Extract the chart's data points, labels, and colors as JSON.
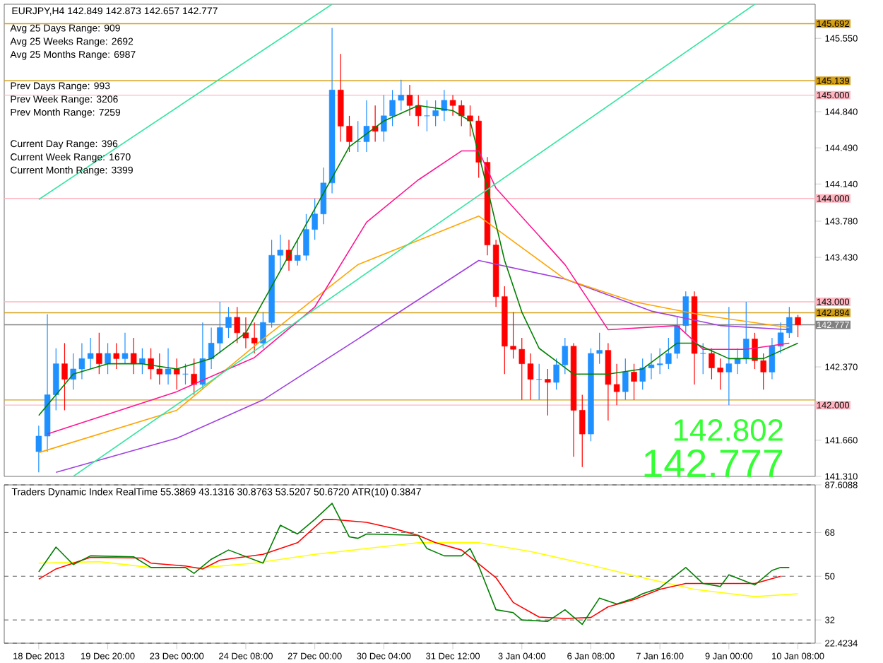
{
  "chart_data": [
    {
      "type": "candlestick",
      "title": "EURJPY,H4 142.849 142.873 142.657 142.777",
      "categories": [
        null,
        null,
        null,
        null,
        null,
        null,
        null,
        null,
        null,
        null,
        null,
        null,
        null,
        null,
        null,
        null,
        null,
        null,
        null,
        null,
        null,
        null,
        null,
        null,
        null,
        null,
        null,
        null,
        null,
        null,
        null,
        null,
        null,
        null,
        null,
        null,
        null,
        null,
        null,
        null,
        null,
        null,
        null,
        null,
        null,
        null,
        null,
        null,
        null,
        null,
        null,
        null,
        null,
        null,
        null,
        null,
        null,
        null,
        null,
        null,
        null,
        null,
        null,
        null,
        null,
        null,
        null,
        null,
        null,
        null,
        null,
        null,
        null,
        null,
        null,
        null,
        null,
        null,
        null,
        null,
        null,
        null,
        null,
        null,
        null,
        null,
        null,
        null,
        null
      ],
      "ohlc": [
        [
          141.55,
          141.8,
          141.35,
          141.7
        ],
        [
          141.7,
          142.88,
          141.55,
          142.1
        ],
        [
          142.1,
          142.55,
          141.95,
          142.4
        ],
        [
          142.4,
          142.6,
          141.95,
          142.25
        ],
        [
          142.25,
          142.5,
          142.15,
          142.35
        ],
        [
          142.35,
          142.6,
          142.25,
          142.45
        ],
        [
          142.45,
          142.65,
          142.35,
          142.5
        ],
        [
          142.5,
          142.7,
          142.3,
          142.4
        ],
        [
          142.4,
          142.6,
          142.3,
          142.5
        ],
        [
          142.5,
          142.6,
          142.35,
          142.45
        ],
        [
          142.45,
          142.7,
          142.4,
          142.5
        ],
        [
          142.5,
          142.65,
          142.3,
          142.4
        ],
        [
          142.4,
          142.55,
          142.3,
          142.45
        ],
        [
          142.45,
          142.55,
          142.25,
          142.35
        ],
        [
          142.35,
          142.5,
          142.2,
          142.3
        ],
        [
          142.3,
          142.55,
          142.2,
          142.35
        ],
        [
          142.35,
          142.45,
          142.15,
          142.3
        ],
        [
          142.3,
          142.4,
          142.2,
          142.3
        ],
        [
          142.3,
          142.45,
          142.1,
          142.2
        ],
        [
          142.2,
          142.8,
          142.15,
          142.45
        ],
        [
          142.45,
          142.75,
          142.35,
          142.6
        ],
        [
          142.6,
          143.0,
          142.5,
          142.75
        ],
        [
          142.75,
          142.95,
          142.65,
          142.85
        ],
        [
          142.85,
          142.95,
          142.6,
          142.7
        ],
        [
          142.7,
          142.85,
          142.55,
          142.65
        ],
        [
          142.65,
          142.8,
          142.5,
          142.6
        ],
        [
          142.6,
          142.9,
          142.55,
          142.8
        ],
        [
          142.8,
          143.6,
          142.75,
          143.45
        ],
        [
          143.45,
          143.65,
          143.3,
          143.5
        ],
        [
          143.5,
          143.6,
          143.3,
          143.4
        ],
        [
          143.4,
          143.6,
          143.35,
          143.45
        ],
        [
          143.45,
          143.85,
          143.4,
          143.7
        ],
        [
          143.7,
          144.0,
          143.6,
          143.85
        ],
        [
          143.85,
          144.3,
          143.75,
          144.15
        ],
        [
          144.15,
          145.65,
          144.05,
          145.05
        ],
        [
          145.05,
          145.4,
          144.55,
          144.7
        ],
        [
          144.7,
          144.8,
          144.45,
          144.55
        ],
        [
          144.55,
          144.75,
          144.45,
          144.55
        ],
        [
          144.55,
          144.95,
          144.45,
          144.7
        ],
        [
          144.7,
          144.9,
          144.55,
          144.65
        ],
        [
          144.65,
          145.0,
          144.55,
          144.8
        ],
        [
          144.8,
          145.05,
          144.7,
          144.95
        ],
        [
          144.95,
          145.15,
          144.85,
          145.0
        ],
        [
          145.0,
          145.1,
          144.8,
          144.9
        ],
        [
          144.9,
          145.0,
          144.7,
          144.8
        ],
        [
          144.8,
          144.95,
          144.65,
          144.8
        ],
        [
          144.8,
          144.95,
          144.7,
          144.85
        ],
        [
          144.85,
          145.05,
          144.75,
          144.95
        ],
        [
          144.95,
          145.0,
          144.8,
          144.9
        ],
        [
          144.9,
          144.95,
          144.7,
          144.8
        ],
        [
          144.8,
          144.9,
          144.6,
          144.75
        ],
        [
          144.75,
          144.8,
          144.2,
          144.35
        ],
        [
          144.35,
          144.4,
          143.45,
          143.55
        ],
        [
          143.55,
          143.6,
          142.95,
          143.05
        ],
        [
          143.05,
          143.15,
          142.3,
          142.57
        ],
        [
          142.57,
          142.9,
          142.45,
          142.54
        ],
        [
          142.54,
          142.65,
          142.05,
          142.4
        ],
        [
          142.4,
          142.5,
          142.05,
          142.25
        ],
        [
          142.25,
          142.4,
          142.05,
          142.25
        ],
        [
          142.25,
          142.35,
          141.9,
          142.22
        ],
        [
          142.22,
          142.45,
          142.15,
          142.39
        ],
        [
          142.39,
          142.65,
          142.3,
          142.57
        ],
        [
          142.57,
          142.6,
          141.5,
          141.95
        ],
        [
          141.95,
          142.1,
          141.4,
          141.72
        ],
        [
          141.72,
          142.55,
          141.65,
          142.5
        ],
        [
          142.5,
          142.7,
          142.4,
          142.53
        ],
        [
          142.53,
          142.6,
          141.85,
          142.2
        ],
        [
          142.2,
          142.4,
          142.0,
          142.13
        ],
        [
          142.13,
          142.45,
          142.05,
          142.32
        ],
        [
          142.32,
          142.4,
          142.05,
          142.23
        ],
        [
          142.23,
          142.45,
          142.15,
          142.36
        ],
        [
          142.36,
          142.5,
          142.25,
          142.39
        ],
        [
          142.39,
          142.55,
          142.3,
          142.4
        ],
        [
          142.4,
          142.65,
          142.35,
          142.5
        ],
        [
          142.5,
          142.85,
          142.45,
          142.77
        ],
        [
          142.77,
          143.1,
          142.7,
          143.05
        ],
        [
          143.05,
          143.1,
          142.2,
          142.5
        ],
        [
          142.5,
          142.6,
          142.3,
          142.5
        ],
        [
          142.5,
          142.55,
          142.25,
          142.36
        ],
        [
          142.36,
          142.45,
          142.15,
          142.32
        ],
        [
          142.32,
          142.95,
          142.0,
          142.4
        ],
        [
          142.4,
          142.55,
          142.3,
          142.45
        ],
        [
          142.45,
          143.0,
          142.4,
          142.64
        ],
        [
          142.64,
          142.7,
          142.35,
          142.43
        ],
        [
          142.43,
          142.5,
          142.15,
          142.32
        ],
        [
          142.32,
          142.65,
          142.25,
          142.57
        ],
        [
          142.57,
          142.8,
          142.5,
          142.7
        ],
        [
          142.7,
          142.95,
          142.65,
          142.849
        ],
        [
          142.849,
          142.873,
          142.657,
          142.777
        ]
      ],
      "colors": [
        "#1e90ff",
        "#1e90ff",
        "#1e90ff",
        "#ff0000",
        "#1e90ff",
        "#1e90ff",
        "#1e90ff",
        "#ff0000",
        "#1e90ff",
        "#ff0000",
        "#1e90ff",
        "#ff0000",
        "#1e90ff",
        "#ff0000",
        "#ff0000",
        "#1e90ff",
        "#ff0000",
        "#1e90ff",
        "#ff0000",
        "#1e90ff",
        "#1e90ff",
        "#1e90ff",
        "#1e90ff",
        "#ff0000",
        "#ff0000",
        "#ff0000",
        "#1e90ff",
        "#1e90ff",
        "#1e90ff",
        "#ff0000",
        "#1e90ff",
        "#1e90ff",
        "#1e90ff",
        "#1e90ff",
        "#1e90ff",
        "#ff0000",
        "#ff0000",
        "#1e90ff",
        "#1e90ff",
        "#ff0000",
        "#1e90ff",
        "#1e90ff",
        "#1e90ff",
        "#ff0000",
        "#ff0000",
        "#1e90ff",
        "#1e90ff",
        "#1e90ff",
        "#ff0000",
        "#ff0000",
        "#ff0000",
        "#ff0000",
        "#ff0000",
        "#ff0000",
        "#ff0000",
        "#ff0000",
        "#ff0000",
        "#ff0000",
        "#1e90ff",
        "#ff0000",
        "#1e90ff",
        "#1e90ff",
        "#ff0000",
        "#ff0000",
        "#1e90ff",
        "#1e90ff",
        "#ff0000",
        "#ff0000",
        "#1e90ff",
        "#ff0000",
        "#1e90ff",
        "#1e90ff",
        "#1e90ff",
        "#1e90ff",
        "#1e90ff",
        "#1e90ff",
        "#ff0000",
        "#1e90ff",
        "#ff0000",
        "#ff0000",
        "#1e90ff",
        "#1e90ff",
        "#1e90ff",
        "#ff0000",
        "#ff0000",
        "#1e90ff",
        "#1e90ff",
        "#1e90ff",
        "#ff0000"
      ],
      "series": [
        {
          "type": "line",
          "color": "#a040e0",
          "values": [
            null,
            null,
            141.35,
            null,
            null,
            null,
            null,
            null,
            null,
            null,
            null,
            null,
            null,
            null,
            null,
            null,
            141.68,
            null,
            null,
            null,
            null,
            null,
            null,
            null,
            null,
            null,
            142.05,
            null,
            null,
            null,
            null,
            null,
            null,
            null,
            null,
            null,
            null,
            142.64,
            null,
            null,
            null,
            null,
            null,
            null,
            null,
            null,
            null,
            null,
            null,
            null,
            null,
            143.4,
            null,
            null,
            null,
            null,
            null,
            null,
            null,
            null,
            null,
            143.22,
            null,
            null,
            null,
            null,
            null,
            null,
            null,
            null,
            null,
            142.91,
            null,
            null,
            null,
            null,
            null,
            null,
            null,
            142.77,
            null,
            null,
            null,
            null,
            null,
            null,
            null,
            142.73,
            null
          ]
        },
        {
          "type": "line",
          "color": "#ffa500",
          "values": [
            141.54,
            null,
            null,
            null,
            null,
            null,
            null,
            null,
            null,
            null,
            null,
            null,
            null,
            null,
            null,
            null,
            141.95,
            null,
            null,
            null,
            null,
            null,
            null,
            null,
            null,
            null,
            142.64,
            null,
            null,
            null,
            null,
            null,
            null,
            null,
            null,
            null,
            null,
            143.36,
            null,
            null,
            null,
            null,
            null,
            null,
            null,
            null,
            null,
            null,
            null,
            null,
            null,
            143.83,
            null,
            null,
            null,
            null,
            null,
            null,
            null,
            null,
            null,
            143.22,
            null,
            null,
            null,
            null,
            null,
            null,
            null,
            143.0,
            null,
            null,
            null,
            null,
            null,
            null,
            null,
            142.87,
            null,
            null,
            null,
            null,
            null,
            null,
            null,
            null,
            null,
            142.75,
            null
          ]
        },
        {
          "type": "line",
          "color": "#ff1493",
          "values": [
            null,
            141.72,
            null,
            null,
            null,
            null,
            null,
            null,
            null,
            null,
            null,
            null,
            null,
            null,
            null,
            null,
            142.13,
            null,
            null,
            null,
            null,
            null,
            null,
            null,
            null,
            142.46,
            null,
            null,
            null,
            null,
            null,
            null,
            142.95,
            null,
            null,
            null,
            null,
            null,
            143.77,
            null,
            null,
            null,
            null,
            null,
            144.18,
            null,
            null,
            null,
            null,
            144.46,
            null,
            144.46,
            null,
            144.1,
            null,
            null,
            null,
            null,
            null,
            null,
            null,
            143.36,
            null,
            null,
            null,
            null,
            142.73,
            null,
            null,
            null,
            null,
            null,
            null,
            null,
            142.77,
            null,
            null,
            142.54,
            null,
            null,
            null,
            null,
            142.54,
            null,
            null,
            null,
            null,
            142.6,
            null
          ]
        },
        {
          "type": "line",
          "color": "#008000",
          "values": [
            141.9,
            null,
            null,
            null,
            142.3,
            null,
            null,
            null,
            142.4,
            null,
            null,
            null,
            142.4,
            null,
            null,
            null,
            142.35,
            null,
            null,
            null,
            142.45,
            null,
            null,
            null,
            142.7,
            null,
            null,
            null,
            143.3,
            null,
            null,
            null,
            143.9,
            null,
            null,
            null,
            144.5,
            null,
            null,
            null,
            144.75,
            null,
            null,
            null,
            144.9,
            null,
            null,
            null,
            144.85,
            null,
            144.75,
            null,
            144.1,
            null,
            143.4,
            null,
            142.9,
            null,
            142.55,
            null,
            null,
            null,
            142.3,
            null,
            null,
            null,
            142.3,
            null,
            null,
            null,
            142.35,
            null,
            null,
            null,
            142.6,
            null,
            142.6,
            null,
            null,
            null,
            142.45,
            null,
            null,
            null,
            142.45,
            null,
            null,
            null,
            142.6
          ]
        },
        {
          "type": "line",
          "color": "#33e6a0",
          "values": [
            null,
            null,
            null,
            null,
            141.31,
            null,
            null,
            null,
            null,
            null,
            null,
            null,
            null,
            null,
            null,
            null,
            null,
            null,
            null,
            null,
            null,
            null,
            null,
            null,
            null,
            null,
            null,
            null,
            null,
            null,
            null,
            null,
            null,
            null,
            null,
            null,
            null,
            null,
            null,
            null,
            null,
            null,
            null,
            null,
            null,
            null,
            null,
            null,
            null,
            null,
            null,
            null,
            null,
            null,
            null,
            null,
            null,
            null,
            null,
            null,
            null,
            null,
            null,
            null,
            null,
            null,
            null,
            null,
            null,
            null,
            null,
            null,
            null,
            null,
            null,
            null,
            null,
            null,
            null,
            null,
            null,
            null,
            null,
            145.88,
            null,
            null,
            null,
            null,
            null
          ]
        },
        {
          "type": "line",
          "color": "#33e6a0",
          "values": [
            143.99,
            null,
            null,
            null,
            null,
            null,
            null,
            null,
            null,
            null,
            null,
            null,
            null,
            null,
            null,
            null,
            null,
            null,
            null,
            null,
            null,
            null,
            null,
            null,
            null,
            null,
            null,
            null,
            null,
            null,
            null,
            null,
            null,
            null,
            145.88,
            null,
            null,
            null,
            null,
            null,
            null,
            null,
            null,
            null,
            null,
            null,
            null,
            null,
            null,
            null,
            null,
            null,
            null,
            null,
            null,
            null,
            null,
            null,
            null,
            null,
            null,
            null,
            null,
            null,
            null,
            null,
            null,
            null,
            null,
            null,
            null,
            null,
            null,
            null,
            null,
            null,
            null,
            null,
            null,
            null,
            null,
            null,
            null,
            null,
            null,
            null,
            null,
            null,
            null
          ]
        }
      ],
      "ylim": [
        141.31,
        145.88
      ],
      "yticks": [
        {
          "value": 141.31,
          "label": "141.310"
        },
        {
          "value": 141.66,
          "label": "141.660"
        },
        {
          "value": 142.37,
          "label": "142.370"
        },
        {
          "value": 143.43,
          "label": "143.430"
        },
        {
          "value": 143.78,
          "label": "143.780"
        },
        {
          "value": 144.14,
          "label": "144.140"
        },
        {
          "value": 144.49,
          "label": "144.490"
        },
        {
          "value": 144.84,
          "label": "144.840"
        },
        {
          "value": 145.55,
          "label": "145.550"
        }
      ],
      "tick_labels": "y",
      "ref_lines": [
        {
          "axis": "y",
          "value": 145.692,
          "label": "145.692",
          "color": "#d4a017"
        },
        {
          "axis": "y",
          "value": 145.139,
          "label": "145.139",
          "color": "#d4a017"
        },
        {
          "axis": "y",
          "value": 145.0,
          "label": "145.000",
          "color": "#ffb6c1"
        },
        {
          "axis": "y",
          "value": 144.0,
          "label": "144.000",
          "color": "#ffb6c1"
        },
        {
          "axis": "y",
          "value": 143.0,
          "label": "143.000",
          "color": "#ffb6c1"
        },
        {
          "axis": "y",
          "value": 142.894,
          "label": "142.894",
          "color": "#d4a017"
        },
        {
          "axis": "y",
          "value": 142.777,
          "label": "142.777",
          "color": "#808080"
        },
        {
          "axis": "y",
          "value": 142.05,
          "color": "#d4a017"
        },
        {
          "axis": "y",
          "value": 142.0,
          "label": "142.000",
          "color": "#ffb6c1"
        }
      ],
      "annotations": [
        "Avg 25  Days Range: 909",
        "Avg 25  Weeks Range: 2692",
        "Avg 25  Months Range: 6987",
        "Prev  Days Range: 993",
        "Prev  Week Range: 3206",
        "Prev  Month Range: 7259",
        "Current  Day Range: 396",
        "Current  Week Range: 1670",
        "Current  Month Range: 3399",
        "142.802",
        "142.777"
      ]
    },
    {
      "type": "line",
      "title": "Traders Dynamic Index RealTime 55.3869 43.1316 30.8763 53.5207 50.6720  ATR(10) 0.3847",
      "categories": [
        "18 Dec 2013",
        null,
        null,
        null,
        null,
        null,
        null,
        null,
        "19 Dec 20:00",
        null,
        null,
        null,
        null,
        null,
        null,
        null,
        "23 Dec 00:00",
        null,
        null,
        null,
        null,
        null,
        null,
        null,
        "24 Dec 08:00",
        null,
        null,
        null,
        null,
        null,
        null,
        null,
        "27 Dec 00:00",
        null,
        null,
        null,
        null,
        null,
        null,
        null,
        "30 Dec 04:00",
        null,
        null,
        null,
        null,
        null,
        null,
        null,
        "31 Dec 12:00",
        null,
        null,
        null,
        null,
        null,
        null,
        null,
        "3 Jan 04:00",
        null,
        null,
        null,
        null,
        null,
        null,
        null,
        "6 Jan 08:00",
        null,
        null,
        null,
        null,
        null,
        null,
        null,
        "7 Jan 16:00",
        null,
        null,
        null,
        null,
        null,
        null,
        null,
        "9 Jan 00:00",
        null,
        null,
        null,
        null,
        null,
        null,
        null,
        "10 Jan 08:00"
      ],
      "series": [
        {
          "color": "#ffff00",
          "values": [
            55.4,
            null,
            null,
            null,
            null,
            null,
            null,
            56,
            null,
            null,
            null,
            null,
            null,
            53.6,
            null,
            null,
            null,
            null,
            null,
            53.6,
            null,
            null,
            null,
            null,
            null,
            55.4,
            null,
            null,
            null,
            null,
            null,
            null,
            59,
            null,
            null,
            null,
            null,
            null,
            61.4,
            null,
            null,
            null,
            null,
            null,
            63.8,
            null,
            null,
            null,
            null,
            null,
            null,
            63.8,
            null,
            null,
            null,
            null,
            null,
            60.2,
            null,
            null,
            null,
            null,
            null,
            55.4,
            null,
            null,
            null,
            null,
            null,
            null,
            49.4,
            null,
            null,
            null,
            null,
            null,
            44.6,
            null,
            null,
            null,
            null,
            null,
            null,
            41.6,
            null,
            null,
            null,
            null,
            42.8
          ]
        },
        {
          "color": "#ff0000",
          "values": [
            48.8,
            null,
            53,
            null,
            null,
            null,
            57.8,
            null,
            null,
            null,
            null,
            null,
            57.5,
            55.4,
            null,
            null,
            null,
            54.2,
            null,
            53,
            null,
            56.6,
            null,
            null,
            null,
            null,
            59,
            null,
            null,
            null,
            63.8,
            null,
            null,
            73.4,
            73.4,
            null,
            null,
            null,
            72.2,
            null,
            null,
            69.8,
            null,
            null,
            66.8,
            null,
            63.8,
            null,
            null,
            60.8,
            null,
            null,
            null,
            49.4,
            null,
            39.2,
            null,
            null,
            33.2,
            null,
            null,
            32.6,
            null,
            null,
            33,
            null,
            37.4,
            null,
            null,
            40.4,
            null,
            null,
            44.6,
            null,
            null,
            47,
            null,
            null,
            null,
            47,
            null,
            null,
            null,
            47,
            null,
            null,
            50,
            null,
            null
          ]
        },
        {
          "color": "#008000",
          "values": [
            51.8,
            null,
            62,
            null,
            54.8,
            null,
            58.4,
            null,
            null,
            null,
            null,
            58,
            null,
            53.6,
            null,
            null,
            null,
            53.6,
            51.2,
            null,
            57,
            null,
            60.8,
            null,
            null,
            null,
            55.4,
            null,
            71,
            null,
            67.4,
            null,
            73.4,
            null,
            80,
            null,
            66.2,
            65.6,
            67.4,
            null,
            null,
            null,
            67,
            null,
            66.8,
            61.4,
            null,
            58.4,
            null,
            58.4,
            61.4,
            54.2,
            null,
            36.2,
            null,
            35,
            32,
            null,
            null,
            31.4,
            null,
            36.2,
            null,
            30.2,
            null,
            41,
            null,
            38.6,
            null,
            41,
            42.8,
            null,
            45.2,
            null,
            null,
            53.6,
            null,
            47,
            null,
            45.8,
            50.6,
            null,
            null,
            46.4,
            null,
            52.4,
            53.6,
            53.6,
            null
          ]
        }
      ],
      "ylim": [
        22.4234,
        87.6088
      ],
      "yticks": [
        22.4234,
        32,
        50,
        68,
        87.6088
      ],
      "grid": "y"
    }
  ]
}
